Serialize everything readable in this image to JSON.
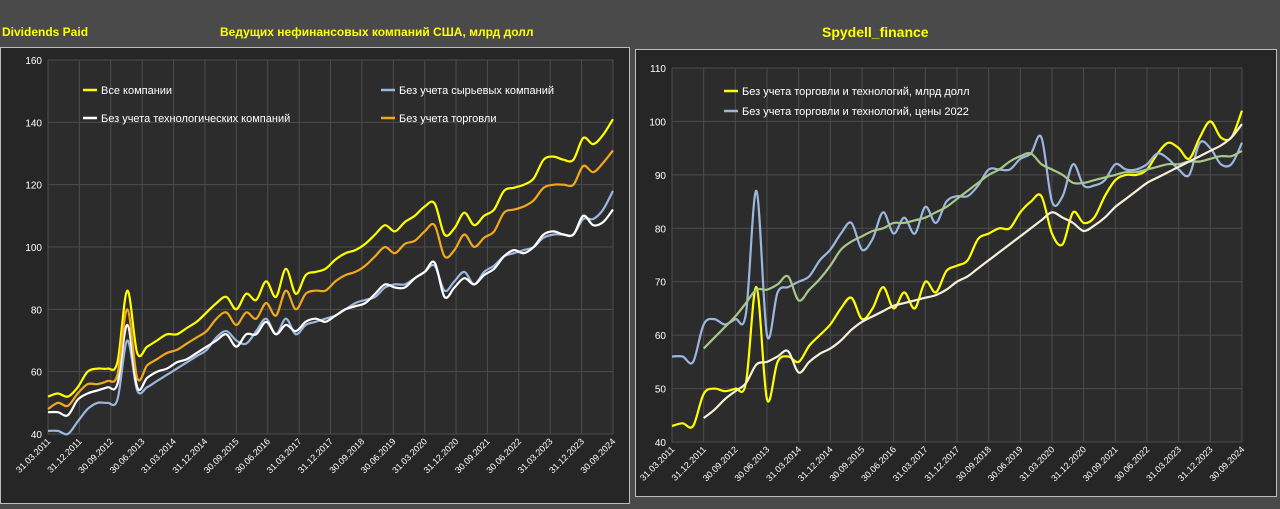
{
  "header": {
    "left_title": "Dividends Paid",
    "center_title": "Ведущих нефинансовых компаний США, млрд долл",
    "right_title": "Spydell_finance"
  },
  "chart_data": [
    {
      "type": "line",
      "ylim": [
        40,
        160
      ],
      "yticks": [
        40,
        60,
        80,
        100,
        120,
        140,
        160
      ],
      "x_tick_labels": [
        "31.03.2011",
        "31.12.2011",
        "30.09.2012",
        "30.06.2013",
        "31.03.2014",
        "31.12.2014",
        "30.09.2015",
        "30.06.2016",
        "31.03.2017",
        "31.12.2017",
        "30.09.2018",
        "30.06.2019",
        "31.03.2020",
        "31.12.2020",
        "30.09.2021",
        "30.06.2022",
        "31.03.2023",
        "31.12.2023",
        "30.09.2024"
      ],
      "grid": true,
      "legend_position": "top",
      "series": [
        {
          "name": "Все компании",
          "color": "#ffff00",
          "values": [
            52,
            53,
            52,
            55,
            60,
            61,
            61,
            63,
            86,
            66,
            68,
            70,
            72,
            72,
            74,
            76,
            79,
            82,
            84,
            80,
            85,
            83,
            89,
            84,
            93,
            85,
            91,
            92,
            93,
            96,
            98,
            99,
            101,
            104,
            107,
            105,
            108,
            110,
            113,
            114,
            104,
            106,
            111,
            107,
            110,
            112,
            118,
            119,
            120,
            122,
            128,
            129,
            128,
            128,
            135,
            133,
            136,
            141
          ]
        },
        {
          "name": "Без учета сырьевых компаний",
          "color": "#9bb7e0",
          "values": [
            41,
            41,
            40,
            44,
            48,
            50,
            50,
            51,
            70,
            54,
            55,
            57,
            59,
            61,
            63,
            65,
            67,
            71,
            73,
            70,
            69,
            73,
            77,
            72,
            77,
            72,
            75,
            76,
            77,
            78,
            80,
            82,
            83,
            84,
            87,
            88,
            88,
            90,
            92,
            94,
            86,
            89,
            92,
            88,
            92,
            94,
            97,
            98,
            99,
            100,
            103,
            104,
            104,
            104,
            109,
            109,
            112,
            118
          ]
        },
        {
          "name": "Без учета технологических компаний",
          "color": "#ffffff",
          "values": [
            47,
            47,
            46,
            51,
            53,
            54,
            55,
            56,
            75,
            55,
            58,
            60,
            61,
            63,
            64,
            66,
            68,
            70,
            72,
            68,
            72,
            72,
            76,
            72,
            75,
            73,
            76,
            77,
            76,
            78,
            80,
            81,
            82,
            85,
            88,
            87,
            87,
            90,
            92,
            95,
            84,
            87,
            90,
            88,
            91,
            93,
            97,
            99,
            98,
            100,
            104,
            105,
            104,
            104,
            110,
            107,
            108,
            112
          ]
        },
        {
          "name": "Без учета торговли",
          "color": "#f2a81d",
          "values": [
            48,
            50,
            49,
            53,
            56,
            56,
            57,
            59,
            80,
            58,
            62,
            64,
            66,
            67,
            69,
            71,
            73,
            77,
            79,
            75,
            79,
            77,
            82,
            78,
            86,
            80,
            85,
            86,
            86,
            89,
            91,
            92,
            94,
            97,
            100,
            98,
            101,
            102,
            105,
            107,
            97,
            99,
            104,
            100,
            103,
            105,
            111,
            112,
            113,
            115,
            119,
            120,
            120,
            120,
            126,
            124,
            127,
            131
          ]
        }
      ]
    },
    {
      "type": "line",
      "ylim": [
        40,
        110
      ],
      "yticks": [
        40,
        50,
        60,
        70,
        80,
        90,
        100,
        110
      ],
      "x_tick_labels": [
        "31.03.2011",
        "31.12.2011",
        "30.09.2012",
        "30.06.2013",
        "31.03.2014",
        "31.12.2014",
        "30.09.2015",
        "30.06.2016",
        "31.03.2017",
        "31.12.2017",
        "30.09.2018",
        "30.06.2019",
        "31.03.2020",
        "31.12.2020",
        "30.09.2021",
        "30.06.2022",
        "31.03.2023",
        "31.12.2023",
        "30.09.2024"
      ],
      "grid": true,
      "legend_position": "top-left",
      "series": [
        {
          "name": "Без учета торговли и технологий, млрд долл",
          "color": "#ffff00",
          "values": [
            43,
            43.5,
            43,
            49,
            50,
            49.5,
            50,
            51,
            69,
            48,
            55,
            56,
            55,
            58,
            60,
            62,
            65,
            67,
            63,
            65,
            69,
            65,
            68,
            65,
            70,
            68,
            72,
            73,
            74,
            78,
            79,
            80,
            80,
            83,
            85,
            86,
            79,
            77,
            83,
            81,
            82,
            86,
            89,
            90,
            90,
            91,
            94,
            96,
            95,
            93,
            97,
            100,
            97,
            97,
            102
          ]
        },
        {
          "name": "Без учета торговли и технологий, цены 2022",
          "color": "#9bb7e0",
          "values": [
            56,
            56,
            55,
            62,
            63,
            62,
            63,
            64,
            87,
            60,
            68,
            69,
            70,
            71,
            74,
            76,
            79,
            81,
            76,
            78,
            83,
            79,
            82,
            79,
            84,
            81,
            85,
            86,
            86,
            88,
            91,
            91,
            91,
            93,
            94,
            97,
            85,
            86,
            92,
            88,
            88,
            89,
            92,
            91,
            91,
            92,
            94,
            93,
            91,
            90,
            96,
            95,
            92,
            92,
            96
          ]
        },
        {
          "name": "",
          "color": "#a8c88a",
          "values": [
            null,
            null,
            null,
            57.5,
            59.5,
            61.5,
            63.5,
            66,
            68.5,
            68.5,
            69.5,
            71,
            66.5,
            68.5,
            70.5,
            73,
            76,
            77.5,
            78.5,
            79.5,
            80,
            81,
            81,
            81.5,
            82,
            83,
            84,
            85.5,
            87,
            88.5,
            90,
            91,
            92.5,
            93.5,
            94,
            92,
            91,
            90,
            88.5,
            88.5,
            89,
            89.5,
            90,
            90.5,
            90.5,
            91,
            91.5,
            92,
            92,
            92.5,
            92.5,
            93,
            93.5,
            93.5,
            94.5
          ]
        },
        {
          "name": "",
          "color": "#f5f0d8",
          "values": [
            null,
            null,
            null,
            44.5,
            46,
            48,
            49.5,
            51,
            54.5,
            55,
            56,
            57,
            53,
            55,
            56.5,
            57.5,
            59,
            61,
            62.5,
            63.5,
            64.5,
            65.5,
            66,
            66.5,
            67,
            67.5,
            68.5,
            70,
            71,
            72.5,
            74,
            75.5,
            77,
            78.5,
            80,
            81.5,
            83,
            82,
            81,
            79.5,
            80.5,
            82,
            84,
            85.5,
            87,
            88.5,
            89.5,
            90.5,
            91.5,
            92.5,
            93.5,
            94.5,
            95.5,
            97,
            99.5
          ]
        }
      ]
    }
  ]
}
